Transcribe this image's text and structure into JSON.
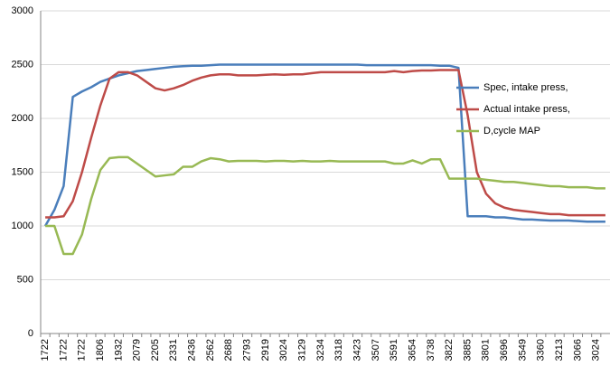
{
  "chart_data": {
    "type": "line",
    "categories": [
      "1722",
      null,
      "1722",
      null,
      "1722",
      null,
      "1806",
      null,
      "1932",
      null,
      "2079",
      null,
      "2205",
      null,
      "2331",
      null,
      "2436",
      null,
      "2562",
      null,
      "2688",
      null,
      "2793",
      null,
      "2919",
      null,
      "3024",
      null,
      "3129",
      null,
      "3234",
      null,
      "3318",
      null,
      "3423",
      null,
      "3507",
      null,
      "3591",
      null,
      "3654",
      null,
      "3738",
      null,
      "3822",
      null,
      "3885",
      null,
      "3801",
      null,
      "3696",
      null,
      "3549",
      null,
      "3360",
      null,
      "3213",
      null,
      "3066",
      null,
      "3024",
      null
    ],
    "ylim": [
      0,
      3000
    ],
    "yticks": [
      0,
      500,
      1000,
      1500,
      2000,
      2500,
      3000
    ],
    "grid": true,
    "legend": "right",
    "series": [
      {
        "name": "Spec, intake press,",
        "color": "#4a7ebb",
        "values": [
          1000,
          1150,
          1370,
          2200,
          2250,
          2290,
          2340,
          2370,
          2400,
          2420,
          2440,
          2450,
          2460,
          2470,
          2480,
          2485,
          2490,
          2490,
          2495,
          2500,
          2500,
          2500,
          2500,
          2500,
          2500,
          2500,
          2500,
          2500,
          2500,
          2500,
          2500,
          2500,
          2500,
          2500,
          2500,
          2495,
          2495,
          2495,
          2495,
          2495,
          2495,
          2495,
          2495,
          2490,
          2490,
          2470,
          1090,
          1090,
          1090,
          1080,
          1080,
          1070,
          1060,
          1060,
          1055,
          1050,
          1050,
          1050,
          1045,
          1040,
          1040,
          1040
        ]
      },
      {
        "name": "Actual intake press,",
        "color": "#be4b48",
        "values": [
          1080,
          1080,
          1090,
          1230,
          1500,
          1820,
          2120,
          2370,
          2430,
          2430,
          2400,
          2340,
          2280,
          2260,
          2280,
          2310,
          2350,
          2380,
          2400,
          2410,
          2410,
          2400,
          2400,
          2400,
          2405,
          2410,
          2405,
          2410,
          2410,
          2420,
          2430,
          2430,
          2430,
          2430,
          2430,
          2430,
          2430,
          2430,
          2440,
          2430,
          2440,
          2445,
          2445,
          2450,
          2450,
          2450,
          2030,
          1500,
          1300,
          1210,
          1170,
          1150,
          1140,
          1130,
          1120,
          1110,
          1110,
          1100,
          1100,
          1100,
          1100,
          1100
        ]
      },
      {
        "name": "D,cycle MAP",
        "color": "#98b954",
        "values": [
          1000,
          1000,
          740,
          740,
          920,
          1250,
          1520,
          1630,
          1640,
          1640,
          1580,
          1520,
          1460,
          1470,
          1480,
          1550,
          1550,
          1600,
          1630,
          1620,
          1600,
          1605,
          1605,
          1605,
          1600,
          1605,
          1605,
          1600,
          1605,
          1600,
          1600,
          1605,
          1600,
          1600,
          1600,
          1600,
          1600,
          1600,
          1580,
          1580,
          1610,
          1580,
          1620,
          1620,
          1440,
          1440,
          1440,
          1440,
          1430,
          1420,
          1410,
          1410,
          1400,
          1390,
          1380,
          1370,
          1370,
          1360,
          1360,
          1360,
          1350,
          1350
        ]
      }
    ]
  }
}
